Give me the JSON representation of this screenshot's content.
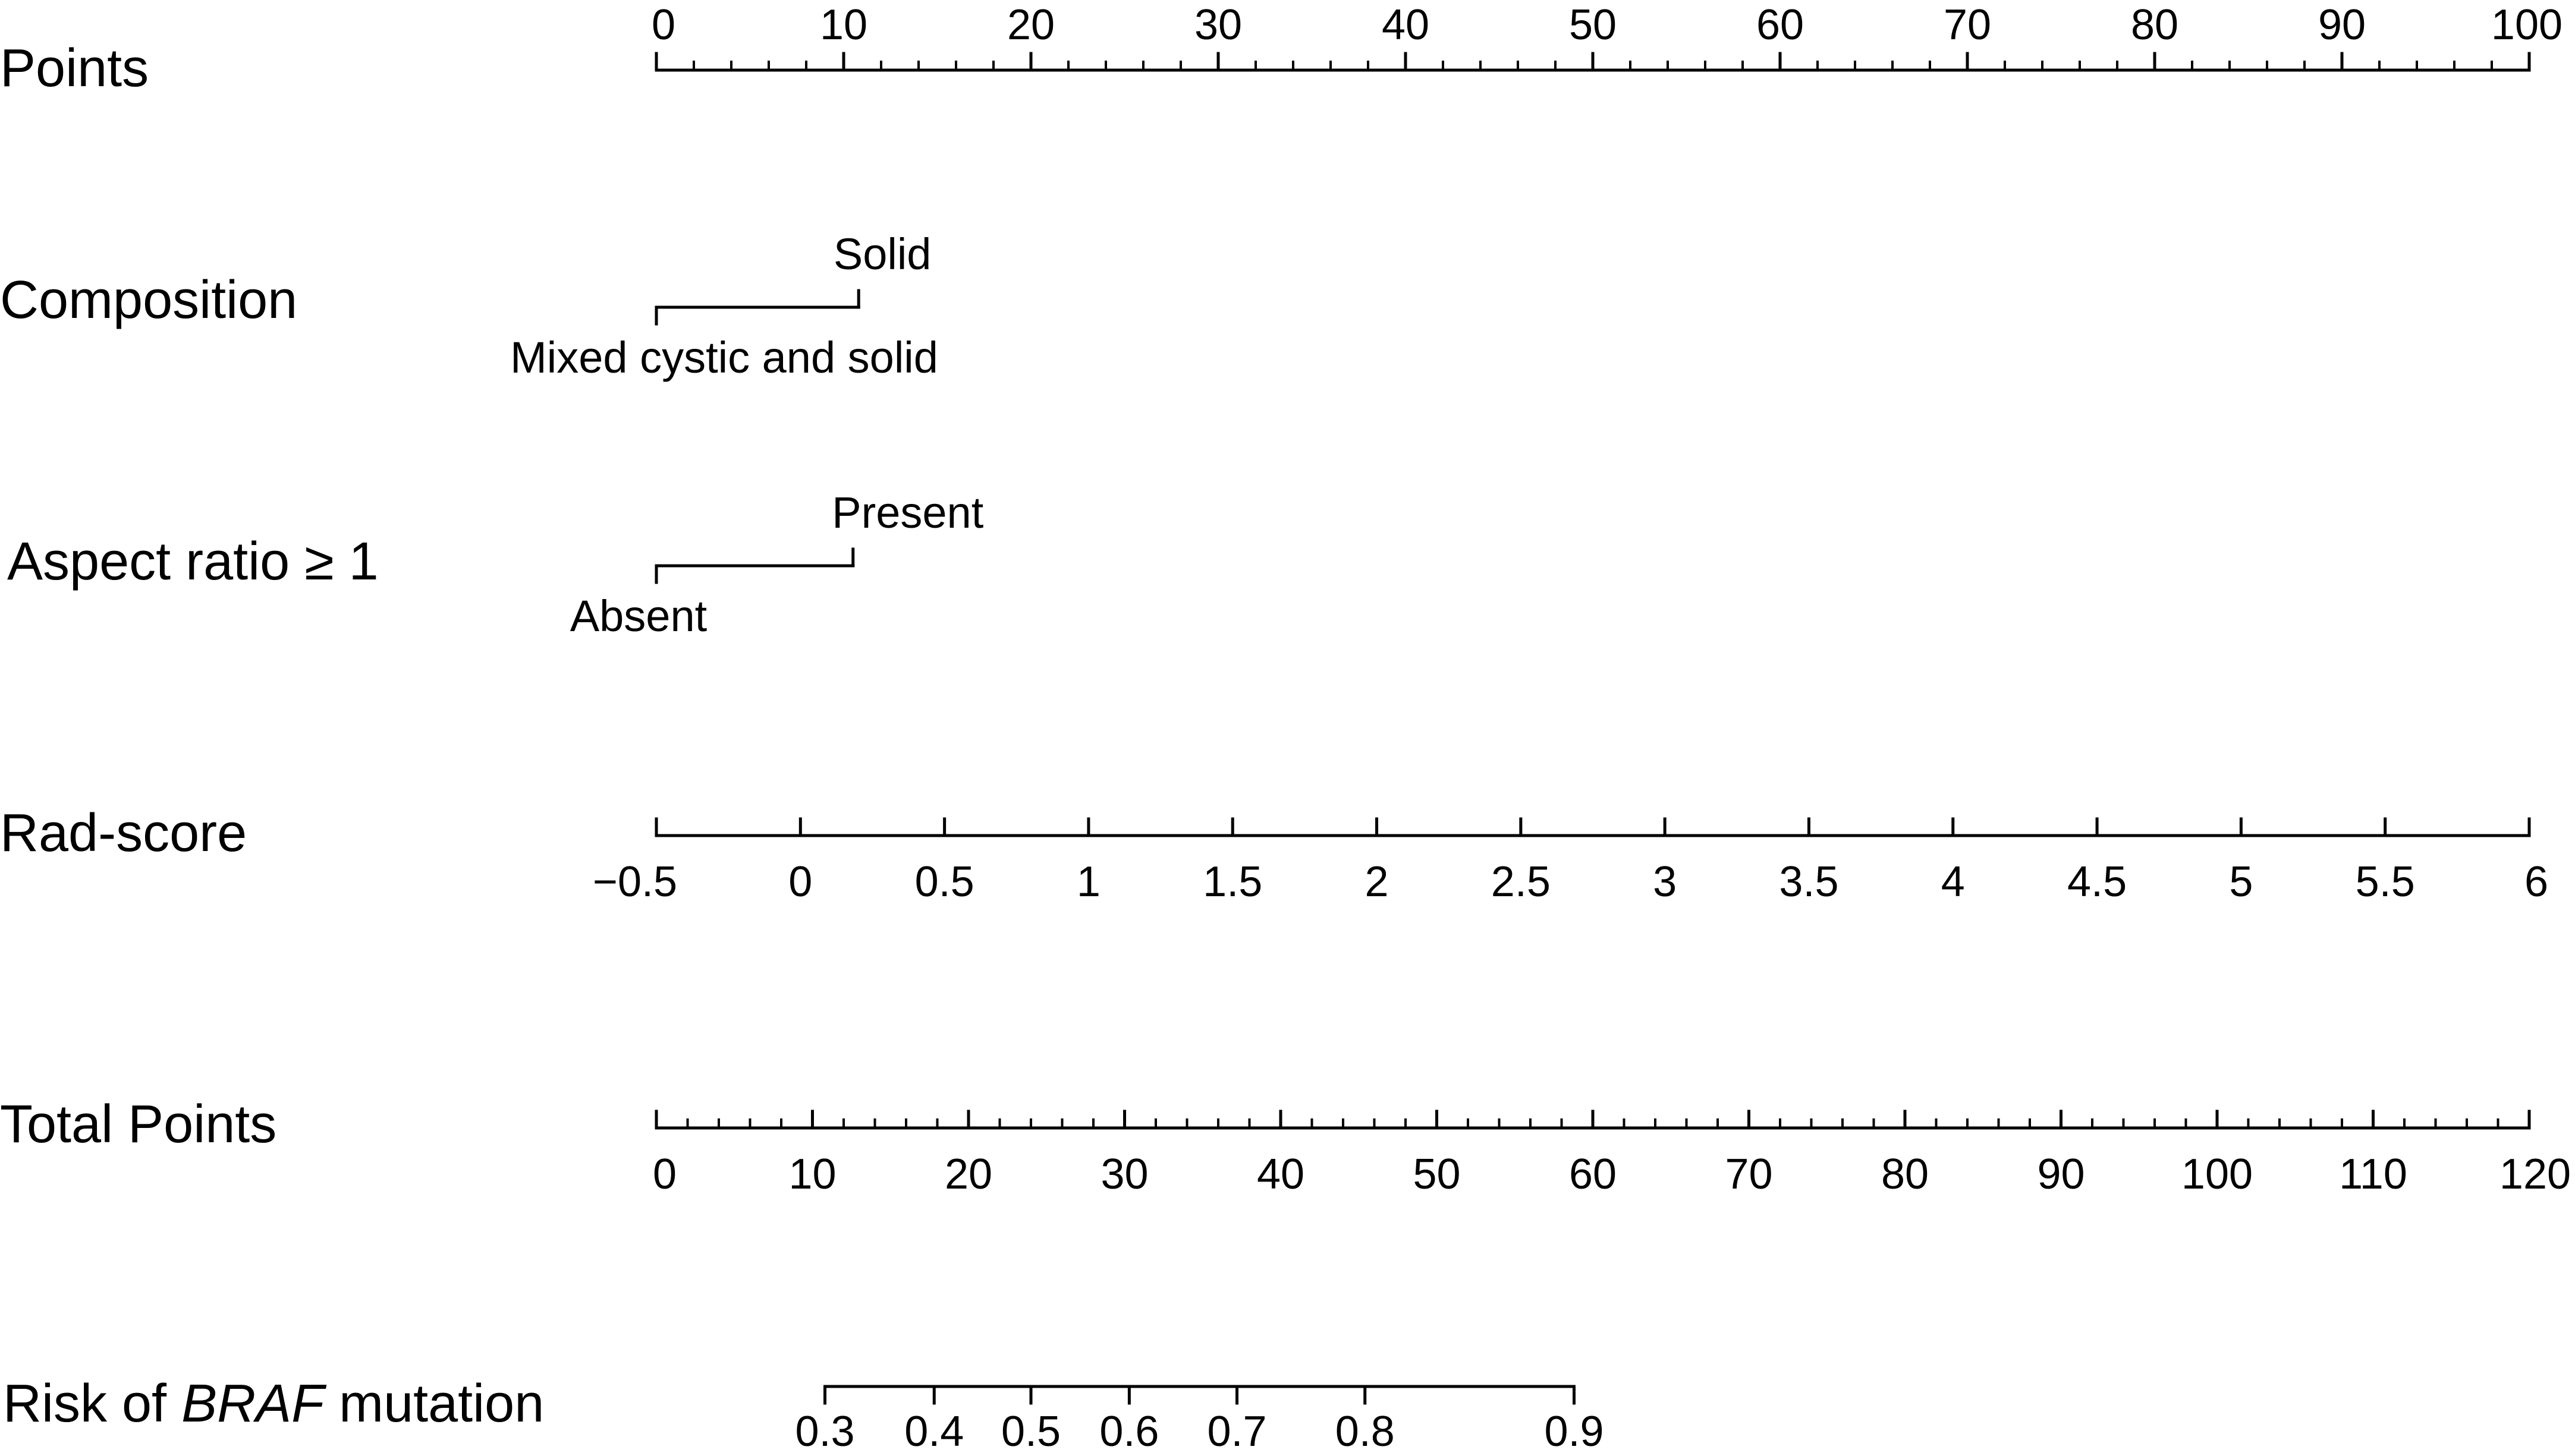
{
  "chart_data": {
    "type": "nomogram",
    "rows": [
      {
        "id": "points",
        "label": "Points",
        "kind": "scale",
        "range": [
          0,
          100
        ],
        "ticks": [
          0,
          10,
          20,
          30,
          40,
          50,
          60,
          70,
          80,
          90,
          100
        ],
        "tick_labels": [
          "0",
          "10",
          "20",
          "30",
          "40",
          "50",
          "60",
          "70",
          "80",
          "90",
          "100"
        ],
        "minor_step": 2,
        "labels_side": "top"
      },
      {
        "id": "composition",
        "label": "Composition",
        "kind": "categorical",
        "categories": [
          {
            "label": "Mixed cystic and solid",
            "points": 0,
            "side": "bottom"
          },
          {
            "label": "Solid",
            "points": 10.8,
            "side": "top"
          }
        ]
      },
      {
        "id": "aspect_ratio",
        "label": "Aspect ratio ≥ 1",
        "kind": "categorical",
        "categories": [
          {
            "label": "Absent",
            "points": 0,
            "side": "bottom"
          },
          {
            "label": "Present",
            "points": 10.5,
            "side": "top"
          }
        ]
      },
      {
        "id": "rad_score",
        "label": "Rad-score",
        "kind": "scale",
        "range": [
          -0.5,
          6
        ],
        "points_range": [
          0,
          100
        ],
        "ticks": [
          -0.5,
          0,
          0.5,
          1,
          1.5,
          2,
          2.5,
          3,
          3.5,
          4,
          4.5,
          5,
          5.5,
          6
        ],
        "tick_labels": [
          "−0.5",
          "0",
          "0.5",
          "1",
          "1.5",
          "2",
          "2.5",
          "3",
          "3.5",
          "4",
          "4.5",
          "5",
          "5.5",
          "6"
        ],
        "labels_side": "bottom"
      },
      {
        "id": "total_points",
        "label": "Total Points",
        "kind": "scale",
        "range": [
          0,
          120
        ],
        "ticks": [
          0,
          10,
          20,
          30,
          40,
          50,
          60,
          70,
          80,
          90,
          100,
          110,
          120
        ],
        "tick_labels": [
          "0",
          "10",
          "20",
          "30",
          "40",
          "50",
          "60",
          "70",
          "80",
          "90",
          "100",
          "110",
          "120"
        ],
        "minor_step": 2,
        "labels_side": "bottom"
      },
      {
        "id": "risk",
        "label": "Risk of BRAF mutation",
        "label_parts": {
          "pre": "Risk of ",
          "italic": "BRAF",
          "post": " mutation"
        },
        "kind": "probability",
        "ticks": [
          0.3,
          0.4,
          0.5,
          0.6,
          0.7,
          0.8,
          0.9
        ],
        "tick_labels": [
          "0.3",
          "0.4",
          "0.5",
          "0.6",
          "0.7",
          "0.8",
          "0.9"
        ],
        "total_points_at_ticks": [
          10.8,
          17.8,
          24.0,
          30.3,
          37.2,
          45.4,
          58.8
        ],
        "labels_side": "bottom"
      }
    ]
  }
}
